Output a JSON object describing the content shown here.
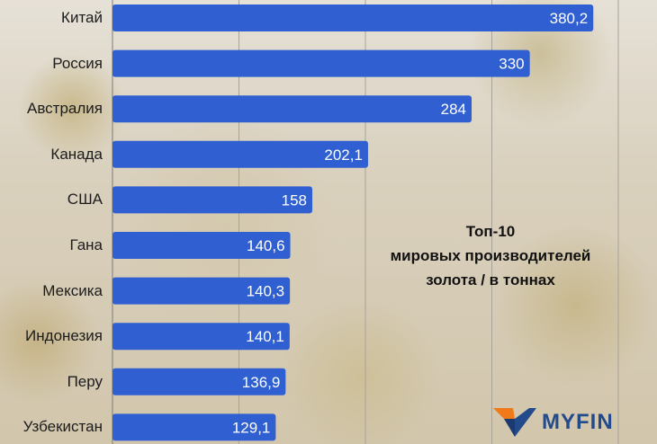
{
  "chart_data": {
    "type": "bar",
    "orientation": "horizontal",
    "categories": [
      "Китай",
      "Россия",
      "Австралия",
      "Канада",
      "США",
      "Гана",
      "Мексика",
      "Индонезия",
      "Перу",
      "Узбекистан"
    ],
    "values": [
      380.2,
      330,
      284,
      202.1,
      158,
      140.6,
      140.3,
      140.1,
      136.9,
      129.1
    ],
    "value_labels": [
      "380,2",
      "330",
      "284",
      "202,1",
      "158",
      "140,6",
      "140,3",
      "140,1",
      "136,9",
      "129,1"
    ],
    "title_lines": [
      "Топ-10",
      "мировых производителей",
      "золота / в тоннах"
    ],
    "xlim": [
      0,
      400
    ],
    "grid": true,
    "bar_color": "#2f5fd0"
  },
  "logo": {
    "text": "MYFIN",
    "color": "#234a8a",
    "accent": "#f07a1a"
  }
}
